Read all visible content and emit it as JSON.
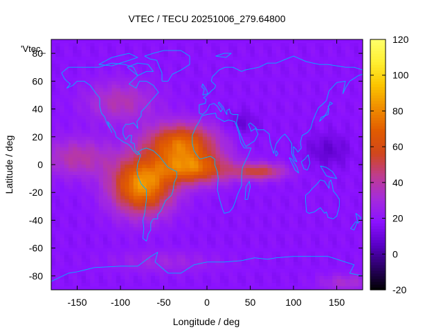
{
  "chart_data": {
    "type": "heatmap",
    "title": "VTEC / TECU 20251006_279.64800",
    "xlabel": "Longitude / deg",
    "ylabel": "Latitude / deg",
    "key_label": "'Vtec_",
    "xlim": [
      -180,
      180
    ],
    "ylim": [
      -90,
      90
    ],
    "x_ticks": [
      -150,
      -100,
      -50,
      0,
      50,
      100,
      150
    ],
    "y_ticks": [
      -80,
      -60,
      -40,
      -20,
      0,
      20,
      40,
      60,
      80
    ],
    "colorbar": {
      "min": -20,
      "max": 120,
      "ticks": [
        -20,
        0,
        20,
        40,
        60,
        80,
        100,
        120
      ],
      "palette": [
        "#000000",
        "#2a0065",
        "#5a00c8",
        "#8b12ff",
        "#a52bdc",
        "#be3c91",
        "#d0471c",
        "#e15b00",
        "#f08d00",
        "#fbc400",
        "#ffef32",
        "#ffff6a"
      ]
    },
    "grid": false,
    "legend_position": "top-left",
    "background_tecu": 18,
    "features": [
      {
        "lon": -75,
        "lat": -15,
        "peak": 65,
        "slon": 35,
        "slat": 20
      },
      {
        "lon": -30,
        "lat": 15,
        "peak": 55,
        "slon": 40,
        "slat": 14
      },
      {
        "lon": -15,
        "lat": -3,
        "peak": 50,
        "slon": 40,
        "slat": 11
      },
      {
        "lon": 60,
        "lat": -5,
        "peak": 35,
        "slon": 30,
        "slat": 6
      },
      {
        "lon": -150,
        "lat": 5,
        "peak": 22,
        "slon": 40,
        "slat": 14
      },
      {
        "lon": -100,
        "lat": 45,
        "peak": 20,
        "slon": 40,
        "slat": 15
      },
      {
        "lon": -50,
        "lat": -70,
        "peak": 10,
        "slon": 60,
        "slat": 8
      },
      {
        "lon": 160,
        "lat": -85,
        "peak": 15,
        "slon": 30,
        "slat": 6
      },
      {
        "lon": 140,
        "lat": 10,
        "peak": -10,
        "slon": 25,
        "slat": 12
      },
      {
        "lon": 40,
        "lat": 30,
        "peak": -9,
        "slon": 18,
        "slat": 8
      }
    ]
  },
  "colors": {
    "coastline": "#00b4ff",
    "border": "#000000",
    "background": "#ffffff"
  }
}
